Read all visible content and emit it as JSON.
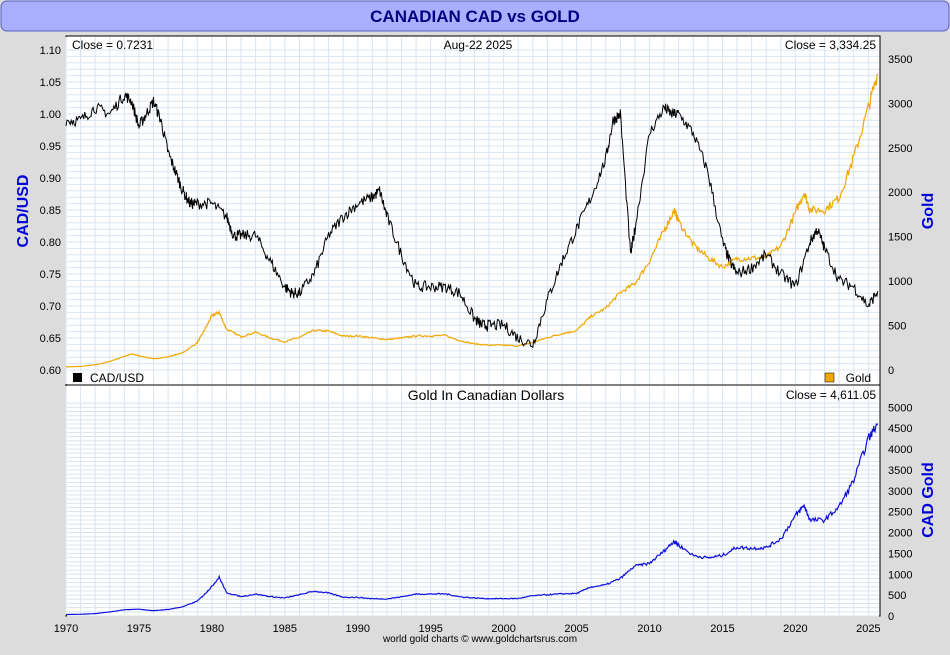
{
  "title": "CANADIAN CAD vs GOLD",
  "footer": "world gold charts © www.goldchartsrus.com",
  "colors": {
    "title_bar": "#aab0ff",
    "title_text": "#000080",
    "cad": "#000000",
    "gold": "#f0a800",
    "gold_cad": "#1010e0",
    "axis_label": "#0000dd",
    "grid": "#d8e4f0"
  },
  "chart_data": [
    {
      "type": "line",
      "panel": "top",
      "top_left_note": "Close = 0.7231",
      "date_note": "Aug-22  2025",
      "top_right_note": "Close = 3,334.25",
      "ylabel_left": "CAD/USD",
      "ylabel_right": "Gold",
      "ylim_left": [
        0.6,
        1.1
      ],
      "ylim_right": [
        0,
        3600
      ],
      "yticks_left": [
        "0.60",
        "0.65",
        "0.70",
        "0.75",
        "0.80",
        "0.85",
        "0.90",
        "0.95",
        "1.00",
        "1.05",
        "1.10"
      ],
      "yticks_right": [
        "0",
        "500",
        "1000",
        "1500",
        "2000",
        "2500",
        "3000",
        "3500"
      ],
      "legend": [
        {
          "name": "CAD/USD",
          "color": "#000000",
          "position": "bottom-left"
        },
        {
          "name": "Gold",
          "color": "#f0a800",
          "position": "bottom-right"
        }
      ],
      "series": [
        {
          "name": "CAD/USD",
          "axis": "left",
          "x": [
            1970.0,
            1971.0,
            1972.0,
            1973.0,
            1974.0,
            1974.5,
            1975.0,
            1975.5,
            1976.0,
            1976.5,
            1977.0,
            1977.5,
            1978.0,
            1978.5,
            1979.0,
            1980.0,
            1981.0,
            1981.5,
            1982.0,
            1983.0,
            1984.0,
            1985.0,
            1985.5,
            1986.0,
            1987.0,
            1988.0,
            1989.0,
            1990.0,
            1991.0,
            1991.5,
            1992.0,
            1993.0,
            1994.0,
            1995.0,
            1996.0,
            1997.0,
            1998.0,
            1998.5,
            1999.0,
            2000.0,
            2001.0,
            2002.0,
            2003.0,
            2004.0,
            2005.0,
            2006.0,
            2007.0,
            2007.5,
            2008.0,
            2008.7,
            2009.0,
            2010.0,
            2011.0,
            2011.5,
            2012.0,
            2013.0,
            2014.0,
            2015.0,
            2015.5,
            2016.0,
            2017.0,
            2018.0,
            2019.0,
            2020.0,
            2021.0,
            2021.5,
            2022.0,
            2023.0,
            2024.0,
            2025.0,
            2025.64
          ],
          "y": [
            0.99,
            0.99,
            1.01,
            1.0,
            1.03,
            1.02,
            0.98,
            1.0,
            1.02,
            0.99,
            0.94,
            0.91,
            0.88,
            0.86,
            0.86,
            0.86,
            0.84,
            0.81,
            0.81,
            0.81,
            0.77,
            0.73,
            0.72,
            0.72,
            0.75,
            0.81,
            0.84,
            0.86,
            0.87,
            0.88,
            0.84,
            0.78,
            0.73,
            0.73,
            0.73,
            0.72,
            0.68,
            0.67,
            0.67,
            0.67,
            0.65,
            0.64,
            0.71,
            0.77,
            0.82,
            0.87,
            0.93,
            0.99,
            1.0,
            0.78,
            0.82,
            0.97,
            1.01,
            1.0,
            1.0,
            0.97,
            0.91,
            0.8,
            0.77,
            0.75,
            0.76,
            0.78,
            0.75,
            0.73,
            0.8,
            0.82,
            0.79,
            0.74,
            0.73,
            0.7,
            0.7231
          ]
        },
        {
          "name": "Gold",
          "axis": "right",
          "x": [
            1970.0,
            1971.0,
            1972.0,
            1973.0,
            1974.0,
            1974.5,
            1975.0,
            1976.0,
            1977.0,
            1978.0,
            1979.0,
            1979.5,
            1980.0,
            1980.5,
            1981.0,
            1982.0,
            1983.0,
            1984.0,
            1985.0,
            1986.0,
            1987.0,
            1988.0,
            1989.0,
            1990.0,
            1991.0,
            1992.0,
            1993.0,
            1994.0,
            1995.0,
            1996.0,
            1997.0,
            1998.0,
            1999.0,
            2000.0,
            2001.0,
            2002.0,
            2003.0,
            2004.0,
            2005.0,
            2006.0,
            2007.0,
            2008.0,
            2009.0,
            2010.0,
            2011.0,
            2011.7,
            2012.0,
            2013.0,
            2014.0,
            2015.0,
            2016.0,
            2017.0,
            2018.0,
            2019.0,
            2020.0,
            2020.6,
            2021.0,
            2022.0,
            2023.0,
            2024.0,
            2025.0,
            2025.64
          ],
          "y": [
            35,
            40,
            58,
            97,
            154,
            180,
            161,
            125,
            148,
            193,
            307,
            450,
            610,
            650,
            460,
            375,
            425,
            360,
            317,
            368,
            446,
            437,
            381,
            383,
            362,
            343,
            360,
            384,
            384,
            388,
            331,
            294,
            279,
            279,
            271,
            310,
            364,
            409,
            444,
            604,
            695,
            872,
            972,
            1225,
            1571,
            1800,
            1670,
            1411,
            1266,
            1160,
            1251,
            1257,
            1268,
            1393,
            1770,
            2000,
            1800,
            1800,
            1940,
            2390,
            2950,
            3334
          ]
        }
      ]
    },
    {
      "type": "line",
      "panel": "bottom",
      "title": "Gold In Canadian Dollars",
      "top_right_note": "Close = 4,611.05",
      "ylabel_right": "CAD Gold",
      "ylim_right": [
        0,
        5200
      ],
      "yticks_right": [
        "0",
        "500",
        "1000",
        "1500",
        "2000",
        "2500",
        "3000",
        "3500",
        "4000",
        "4500",
        "5000"
      ],
      "xlim": [
        1970,
        2025.8
      ],
      "xticks": [
        "1970",
        "1975",
        "1980",
        "1985",
        "1990",
        "1995",
        "2000",
        "2005",
        "2010",
        "2015",
        "2020",
        "2025"
      ],
      "series": [
        {
          "name": "CAD Gold",
          "axis": "right",
          "x": [
            1970.0,
            1971.0,
            1972.0,
            1973.0,
            1974.0,
            1975.0,
            1976.0,
            1977.0,
            1978.0,
            1979.0,
            1979.5,
            1980.0,
            1980.5,
            1981.0,
            1982.0,
            1983.0,
            1984.0,
            1985.0,
            1986.0,
            1987.0,
            1988.0,
            1989.0,
            1990.0,
            1991.0,
            1992.0,
            1993.0,
            1994.0,
            1995.0,
            1996.0,
            1997.0,
            1998.0,
            1999.0,
            2000.0,
            2001.0,
            2002.0,
            2003.0,
            2004.0,
            2005.0,
            2006.0,
            2007.0,
            2008.0,
            2009.0,
            2010.0,
            2011.0,
            2011.7,
            2012.0,
            2013.0,
            2014.0,
            2015.0,
            2016.0,
            2017.0,
            2018.0,
            2019.0,
            2020.0,
            2020.6,
            2021.0,
            2022.0,
            2023.0,
            2024.0,
            2025.0,
            2025.64
          ],
          "y": [
            36,
            41,
            57,
            97,
            150,
            165,
            126,
            157,
            220,
            357,
            520,
            710,
            930,
            560,
            465,
            525,
            465,
            432,
            510,
            594,
            550,
            452,
            445,
            415,
            410,
            460,
            525,
            527,
            531,
            460,
            432,
            416,
            416,
            420,
            485,
            510,
            531,
            541,
            695,
            747,
            900,
            1200,
            1260,
            1560,
            1800,
            1700,
            1450,
            1390,
            1450,
            1650,
            1620,
            1640,
            1850,
            2400,
            2650,
            2300,
            2300,
            2620,
            3250,
            4250,
            4611
          ]
        }
      ]
    }
  ]
}
